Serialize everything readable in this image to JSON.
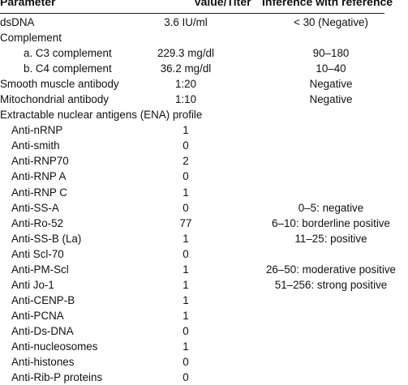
{
  "table": {
    "headers": {
      "parameter": "Parameter",
      "value": "Value/Titer",
      "reference": "Inference with reference"
    },
    "rows": [
      {
        "parameter": "dsDNA",
        "value": "3.6 IU/ml",
        "reference": "< 30 (Negative)",
        "indent": 0
      },
      {
        "parameter": "Complement",
        "value": "",
        "reference": "",
        "indent": 0
      },
      {
        "parameter": "a. C3 complement",
        "value": "229.3 mg/dl",
        "reference": "90–180",
        "indent": 2
      },
      {
        "parameter": "b. C4 complement",
        "value": "36.2 mg/dl",
        "reference": "10–40",
        "indent": 2
      },
      {
        "parameter": "Smooth muscle antibody",
        "value": "1:20",
        "reference": "Negative",
        "indent": 0
      },
      {
        "parameter": "Mitochondrial antibody",
        "value": "1:10",
        "reference": "Negative",
        "indent": 0
      },
      {
        "parameter": "Extractable nuclear antigens (ENA) profile",
        "value": "",
        "reference": "",
        "indent": 0
      },
      {
        "parameter": "Anti-nRNP",
        "value": "1",
        "reference": "",
        "indent": 1
      },
      {
        "parameter": "Anti-smith",
        "value": "0",
        "reference": "",
        "indent": 1
      },
      {
        "parameter": "Anti-RNP70",
        "value": "2",
        "reference": "",
        "indent": 1
      },
      {
        "parameter": "Anti-RNP A",
        "value": "0",
        "reference": "",
        "indent": 1
      },
      {
        "parameter": "Anti-RNP C",
        "value": "1",
        "reference": "",
        "indent": 1
      },
      {
        "parameter": "Anti-SS-A",
        "value": "0",
        "reference": "0–5: negative",
        "indent": 1
      },
      {
        "parameter": "Anti-Ro-52",
        "value": "77",
        "reference": "6–10: borderline positive",
        "indent": 1
      },
      {
        "parameter": "Anti-SS-B (La)",
        "value": "1",
        "reference": "11–25: positive",
        "indent": 1
      },
      {
        "parameter": "Anti Scl-70",
        "value": "0",
        "reference": "",
        "indent": 1
      },
      {
        "parameter": "Anti-PM-Scl",
        "value": "1",
        "reference": "26–50: moderative positive",
        "indent": 1
      },
      {
        "parameter": "Anti Jo-1",
        "value": "1",
        "reference": "51–256: strong positive",
        "indent": 1
      },
      {
        "parameter": "Anti-CENP-B",
        "value": "1",
        "reference": "",
        "indent": 1
      },
      {
        "parameter": "Anti-PCNA",
        "value": "1",
        "reference": "",
        "indent": 1
      },
      {
        "parameter": "Anti-Ds-DNA",
        "value": "0",
        "reference": "",
        "indent": 1
      },
      {
        "parameter": "Anti-nucleosomes",
        "value": "1",
        "reference": "",
        "indent": 1
      },
      {
        "parameter": "Anti-histones",
        "value": "0",
        "reference": "",
        "indent": 1
      },
      {
        "parameter": "Anti-Rib-P proteins",
        "value": "0",
        "reference": "",
        "indent": 1
      }
    ]
  }
}
